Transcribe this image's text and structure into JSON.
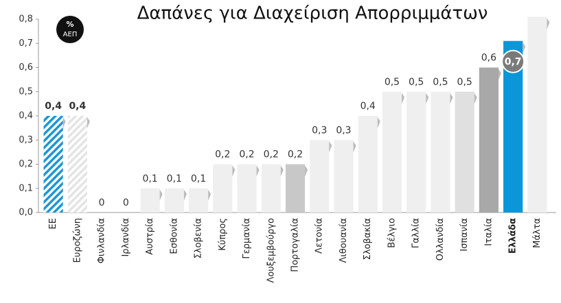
{
  "chart_data": {
    "type": "bar",
    "title": "Δαπάνες για Διαχείριση Απορριμμάτων",
    "unit_badge": [
      "%",
      "ΑΕΠ"
    ],
    "categories": [
      "ΕΕ",
      "Ευροζώνη",
      "Φινλανδία",
      "Ιρλανδία",
      "Αυστρία",
      "Εσθονία",
      "Σλοβενία",
      "Κύπρος",
      "Γερμανία",
      "Λουξεμβούργο",
      "Πορτογαλία",
      "Λετονία",
      "Λιθουανία",
      "Σλοβακία",
      "Βέλγιο",
      "Γαλλία",
      "Ολλανδία",
      "Ισπανία",
      "Ιταλία",
      "Ελλάδα",
      "Μάλτα"
    ],
    "values": [
      0.4,
      0.4,
      0,
      0,
      0.1,
      0.1,
      0.1,
      0.2,
      0.2,
      0.2,
      0.2,
      0.3,
      0.3,
      0.4,
      0.5,
      0.5,
      0.5,
      0.5,
      0.6,
      0.71,
      0.81
    ],
    "value_labels": [
      "0,4",
      "0,4",
      "0",
      "0",
      "0,1",
      "0,1",
      "0,1",
      "0,2",
      "0,2",
      "0,2",
      "0,2",
      "0,3",
      "0,3",
      "0,4",
      "0,5",
      "0,5",
      "0,5",
      "0,5",
      "0,6",
      "0,7",
      null
    ],
    "colors": [
      "#1c96d4",
      "#e4e4e4",
      "#efefef",
      "#efefef",
      "#efefef",
      "#efefef",
      "#efefef",
      "#efefef",
      "#efefef",
      "#efefef",
      "#c8c8c8",
      "#efefef",
      "#efefef",
      "#efefef",
      "#efefef",
      "#efefef",
      "#efefef",
      "#e0e0e0",
      "#a8a8a8",
      "#0b96d9",
      "#efefef"
    ],
    "hatched": [
      true,
      true,
      false,
      false,
      false,
      false,
      false,
      false,
      false,
      false,
      false,
      false,
      false,
      false,
      false,
      false,
      false,
      false,
      false,
      false,
      false
    ],
    "highlight": [
      false,
      false,
      false,
      false,
      false,
      false,
      false,
      false,
      false,
      false,
      false,
      false,
      false,
      false,
      false,
      false,
      false,
      false,
      false,
      true,
      false
    ],
    "ylim": [
      0,
      0.8
    ],
    "yticks": [
      {
        "value": 0,
        "label": "0,0"
      },
      {
        "value": 0.1,
        "label": "0,1"
      },
      {
        "value": 0.2,
        "label": "0,2"
      },
      {
        "value": 0.3,
        "label": "0,3"
      },
      {
        "value": 0.4,
        "label": "0,4"
      },
      {
        "value": 0.5,
        "label": "0,5"
      },
      {
        "value": 0.6,
        "label": "0,6"
      },
      {
        "value": 0.7,
        "label": "0,7"
      },
      {
        "value": 0.8,
        "label": "0,8"
      }
    ]
  }
}
